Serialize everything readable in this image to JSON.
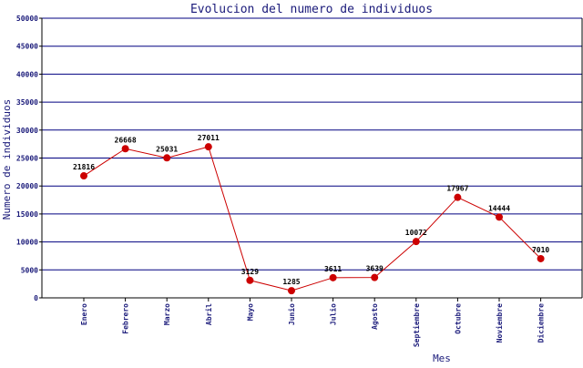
{
  "chart_data": {
    "type": "line",
    "title": "Evolucion del numero de individuos",
    "xlabel": "Mes",
    "ylabel": "Numero de individuos",
    "categories": [
      "Enero",
      "Febrero",
      "Marzo",
      "Abril",
      "Mayo",
      "Junio",
      "Julio",
      "Agosto",
      "Septiembre",
      "Octubre",
      "Noviembre",
      "Diciembre"
    ],
    "series": [
      {
        "values": [
          21816,
          26668,
          25031,
          27011,
          3129,
          1285,
          3611,
          3639,
          10072,
          17967,
          14444,
          7010
        ],
        "color": "#cc0000"
      }
    ],
    "ylim": [
      0,
      50000
    ],
    "yticks": [
      0,
      5000,
      10000,
      15000,
      20000,
      25000,
      30000,
      35000,
      40000,
      45000,
      50000
    ],
    "grid": true,
    "grid_color": "#000080",
    "legend": "none",
    "data_labels": [
      "21816",
      "26668",
      "25031",
      "27011",
      "3129",
      "1285",
      "3611",
      "3639",
      "10072",
      "17967",
      "14444",
      "7010"
    ]
  }
}
